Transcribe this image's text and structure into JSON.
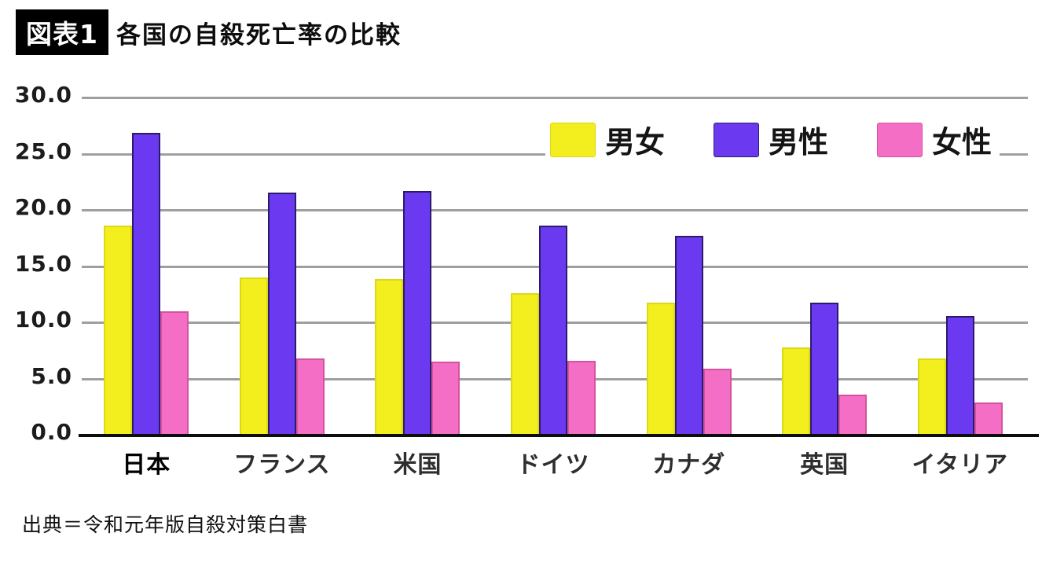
{
  "figure": {
    "badge": "図表1",
    "title": "各国の自殺死亡率の比較",
    "source": "出典＝令和元年版自殺対策白書"
  },
  "chart_data": {
    "type": "bar",
    "title": "各国の自殺死亡率の比較",
    "categories": [
      "日本",
      "フランス",
      "米国",
      "ドイツ",
      "カナダ",
      "英国",
      "イタリア"
    ],
    "emphasized_category": "日本",
    "series": [
      {
        "name": "男女",
        "color": "#f3ef1e",
        "border_color": "#ddd714",
        "values": [
          18.5,
          13.9,
          13.8,
          12.5,
          11.7,
          7.7,
          6.7
        ]
      },
      {
        "name": "男性",
        "color": "#6b3af0",
        "border_color": "#2b1b6e",
        "values": [
          26.8,
          21.5,
          21.6,
          18.5,
          17.6,
          11.7,
          10.5
        ]
      },
      {
        "name": "女性",
        "color": "#f56ec6",
        "border_color": "#d2549e",
        "values": [
          10.9,
          6.7,
          6.4,
          6.5,
          5.8,
          3.5,
          2.8
        ]
      }
    ],
    "ylim": [
      0,
      30
    ],
    "yticks": [
      {
        "value": 30,
        "label": "30.0"
      },
      {
        "value": 25,
        "label": "25.0"
      },
      {
        "value": 20,
        "label": "20.0"
      },
      {
        "value": 15,
        "label": "15.0"
      },
      {
        "value": 10,
        "label": "10.0"
      },
      {
        "value": 5,
        "label": "5.0"
      },
      {
        "value": 0,
        "label": "0.0"
      }
    ],
    "grid": true,
    "legend_position": "top-right",
    "gridline_color": "#9f9f9f",
    "axis_color": "#0d0d0d"
  }
}
